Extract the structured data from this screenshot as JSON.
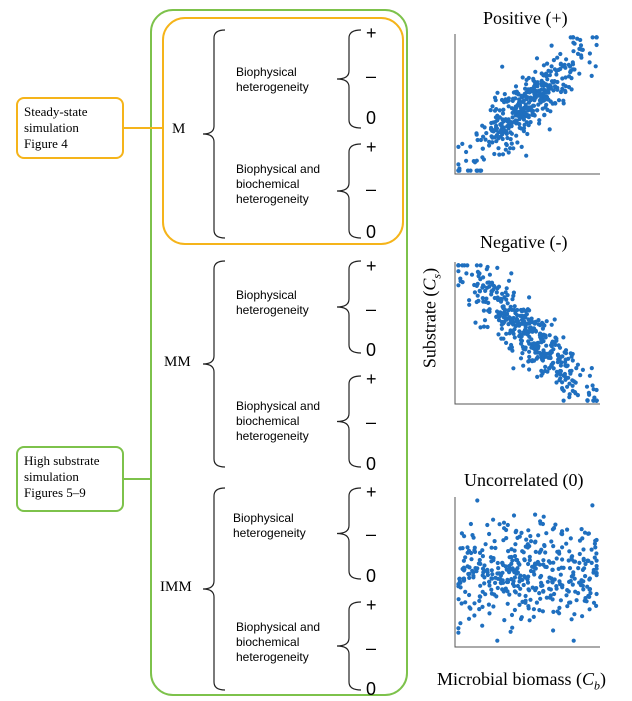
{
  "sim_boxes": {
    "steady": {
      "lines": [
        "Steady-state",
        "simulation",
        "Figure 4"
      ],
      "color": "#F5B41A"
    },
    "high": {
      "lines": [
        "High substrate",
        "simulation",
        "Figures 5–9"
      ],
      "color": "#7DC24B"
    }
  },
  "models": [
    {
      "label": "M",
      "groups": [
        {
          "lines": [
            "Biophysical",
            "heterogeneity"
          ],
          "signs": [
            "+",
            "–",
            "0"
          ]
        },
        {
          "lines": [
            "Biophysical and",
            "biochemical",
            "heterogeneity"
          ],
          "signs": [
            "+",
            "–",
            "0"
          ]
        }
      ]
    },
    {
      "label": "MM",
      "groups": [
        {
          "lines": [
            "Biophysical",
            "heterogeneity"
          ],
          "signs": [
            "+",
            "–",
            "0"
          ]
        },
        {
          "lines": [
            "Biophysical and",
            "biochemical",
            "heterogeneity"
          ],
          "signs": [
            "+",
            "–",
            "0"
          ]
        }
      ]
    },
    {
      "label": "IMM",
      "groups": [
        {
          "lines": [
            "Biophysical",
            "heterogeneity"
          ],
          "signs": [
            "+",
            "–",
            "0"
          ]
        },
        {
          "lines": [
            "Biophysical and",
            "biochemical",
            "heterogeneity"
          ],
          "signs": [
            "+",
            "–",
            "0"
          ]
        }
      ]
    }
  ],
  "plots": [
    {
      "title": "Positive (+)",
      "kind": "positive"
    },
    {
      "title": "Negative (-)",
      "kind": "negative"
    },
    {
      "title": "Uncorrelated (0)",
      "kind": "uncorrelated"
    }
  ],
  "axes": {
    "y": {
      "text": "Substrate (",
      "sym": "C",
      "sub": "s",
      "close": ")"
    },
    "x": {
      "text": "Microbial biomass (",
      "sym": "C",
      "sub": "b",
      "close": ")"
    }
  },
  "colors": {
    "orange_frame": "#F5B41A",
    "green_frame": "#7DC24B",
    "points": "#1F6FBF",
    "axis": "#555555"
  }
}
